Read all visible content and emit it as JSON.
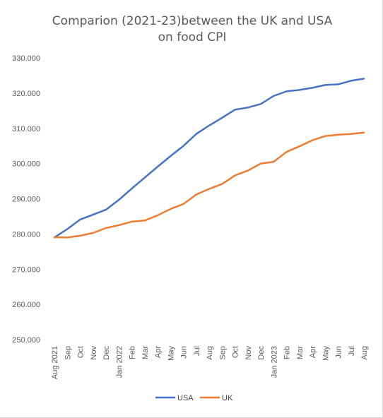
{
  "chart_data": {
    "type": "line",
    "title_lines": [
      "Comparion (2021-23)between the UK and USA",
      "on food CPI"
    ],
    "xlabel": "",
    "ylabel": "",
    "ylim": [
      250,
      330
    ],
    "y_step": 10,
    "y_tick_labels": [
      "250.000",
      "260.000",
      "270.000",
      "280.000",
      "290.000",
      "300.000",
      "310.000",
      "320.000",
      "330.000"
    ],
    "categories": [
      "Aug 2021",
      "Sep",
      "Oct",
      "Nov",
      "Dec",
      "Jan 2022",
      "Feb",
      "Mar",
      "Apr",
      "May",
      "Jun",
      "Jul",
      "Aug",
      "Sep",
      "Oct",
      "Nov",
      "Dec",
      "Jan 2023",
      "Feb",
      "Mar",
      "Apr",
      "May",
      "Jun",
      "Jul",
      "Aug"
    ],
    "series": [
      {
        "name": "USA",
        "color": "#4472c4",
        "values": [
          279.0,
          281.4,
          284.1,
          285.5,
          286.9,
          289.7,
          292.9,
          296.0,
          299.1,
          302.1,
          305.0,
          308.4,
          310.8,
          313.0,
          315.3,
          315.9,
          316.9,
          319.2,
          320.5,
          320.9,
          321.5,
          322.3,
          322.5,
          323.5,
          324.1
        ]
      },
      {
        "name": "UK",
        "color": "#ed7d31",
        "values": [
          279.1,
          279.0,
          279.5,
          280.3,
          281.7,
          282.5,
          283.5,
          283.8,
          285.3,
          287.1,
          288.5,
          291.2,
          292.8,
          294.2,
          296.6,
          298.0,
          300.0,
          300.5,
          303.3,
          304.9,
          306.6,
          307.8,
          308.2,
          308.4,
          308.8
        ]
      }
    ],
    "grid": false,
    "legend_position": "bottom"
  }
}
